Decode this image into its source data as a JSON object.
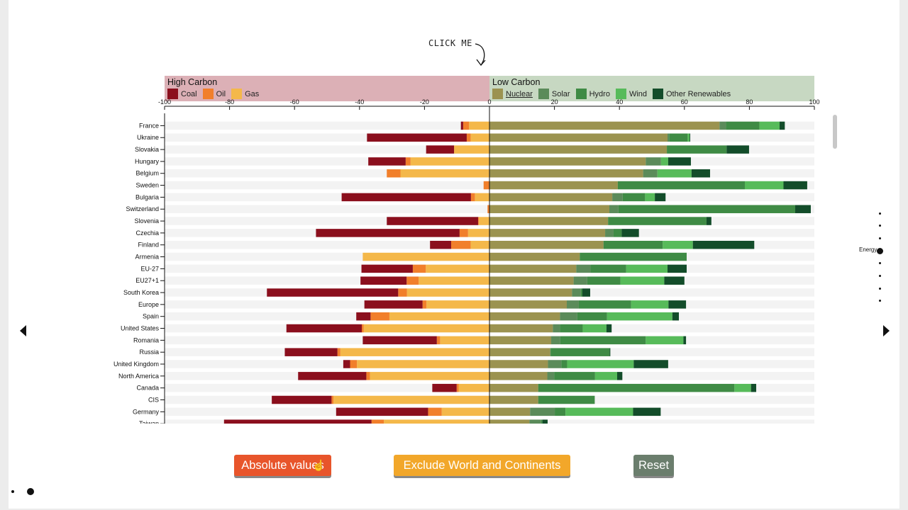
{
  "annotation": {
    "click_me": "CLICK ME"
  },
  "legend": {
    "high_title": "High Carbon",
    "low_title": "Low Carbon",
    "high_items": [
      {
        "label": "Coal",
        "color": "#8b0f1d"
      },
      {
        "label": "Oil",
        "color": "#f17f2b"
      },
      {
        "label": "Gas",
        "color": "#f4b84a"
      }
    ],
    "low_items": [
      {
        "label": "Nuclear",
        "color": "#9b9350"
      },
      {
        "label": "Solar",
        "color": "#5b8b5a"
      },
      {
        "label": "Hydro",
        "color": "#3f8b45"
      },
      {
        "label": "Wind",
        "color": "#57bb5a"
      },
      {
        "label": "Other Renewables",
        "color": "#134d2a"
      }
    ]
  },
  "nav": {
    "active_label": "Energy"
  },
  "buttons": {
    "absolute": "Absolute values",
    "exclude": "Exclude World and Continents",
    "reset": "Reset"
  },
  "chart_data": {
    "type": "bar",
    "orientation": "horizontal-diverging",
    "xlim": [
      -100,
      100
    ],
    "xticks": [
      "-100",
      "-80",
      "-60",
      "-40",
      "-20",
      "0",
      "20",
      "40",
      "60",
      "80",
      "100"
    ],
    "high_series": [
      "Coal",
      "Oil",
      "Gas"
    ],
    "low_series": [
      "Nuclear",
      "Solar",
      "Hydro",
      "Wind",
      "Other Renewables"
    ],
    "colors": {
      "Coal": "#8b0f1d",
      "Oil": "#f17f2b",
      "Gas": "#f4b84a",
      "Nuclear": "#9b9350",
      "Solar": "#5b8b5a",
      "Hydro": "#3f8b45",
      "Wind": "#57bb5a",
      "Other Renewables": "#134d2a"
    },
    "rows": [
      {
        "country": "France",
        "coal": 0.7,
        "oil": 1.8,
        "gas": 6.3,
        "nuclear": 70.8,
        "solar": 2.0,
        "hydro": 10.3,
        "wind": 6.2,
        "other": 1.6
      },
      {
        "country": "Ukraine",
        "coal": 30.7,
        "oil": 1.2,
        "gas": 5.8,
        "nuclear": 54.8,
        "solar": 0.5,
        "hydro": 5.7,
        "wind": 0.6,
        "other": 0.2
      },
      {
        "country": "Slovakia",
        "coal": 8.6,
        "oil": 0.0,
        "gas": 10.9,
        "nuclear": 54.6,
        "solar": 0.0,
        "hydro": 18.4,
        "wind": 0.0,
        "other": 6.9
      },
      {
        "country": "Hungary",
        "coal": 11.5,
        "oil": 1.5,
        "gas": 24.3,
        "nuclear": 48.1,
        "solar": 4.7,
        "hydro": 0.0,
        "wind": 2.2,
        "other": 7.0
      },
      {
        "country": "Belgium",
        "coal": 0.0,
        "oil": 4.2,
        "gas": 27.4,
        "nuclear": 47.3,
        "solar": 4.4,
        "hydro": 0.0,
        "wind": 10.5,
        "other": 5.7
      },
      {
        "country": "Sweden",
        "coal": 0.0,
        "oil": 1.8,
        "gas": 0.0,
        "nuclear": 39.5,
        "solar": 0.0,
        "hydro": 39.1,
        "wind": 11.9,
        "other": 7.3
      },
      {
        "country": "Bulgaria",
        "coal": 39.8,
        "oil": 1.2,
        "gas": 4.5,
        "nuclear": 37.8,
        "solar": 3.2,
        "hydro": 6.9,
        "wind": 3.0,
        "other": 3.3
      },
      {
        "country": "Switzerland",
        "coal": 0.0,
        "oil": 0.6,
        "gas": 0.0,
        "nuclear": 36.9,
        "solar": 2.8,
        "hydro": 54.4,
        "wind": 0.0,
        "other": 4.8
      },
      {
        "country": "Slovenia",
        "coal": 28.1,
        "oil": 0.2,
        "gas": 3.3,
        "nuclear": 36.5,
        "solar": 0.0,
        "hydro": 30.3,
        "wind": 0.0,
        "other": 1.5
      },
      {
        "country": "Czechia",
        "coal": 44.2,
        "oil": 2.6,
        "gas": 6.6,
        "nuclear": 35.6,
        "solar": 2.6,
        "hydro": 2.5,
        "wind": 0.0,
        "other": 5.3
      },
      {
        "country": "Finland",
        "coal": 6.5,
        "oil": 6.0,
        "gas": 5.8,
        "nuclear": 35.1,
        "solar": 0.0,
        "hydro": 18.2,
        "wind": 9.3,
        "other": 18.9
      },
      {
        "country": "Armenia",
        "coal": 0.0,
        "oil": 0.0,
        "gas": 39.0,
        "nuclear": 27.8,
        "solar": 0.0,
        "hydro": 32.9,
        "wind": 0.0,
        "other": 0.0
      },
      {
        "country": "EU-27",
        "coal": 15.8,
        "oil": 4.0,
        "gas": 19.6,
        "nuclear": 26.7,
        "solar": 4.4,
        "hydro": 11.0,
        "wind": 12.7,
        "other": 5.9
      },
      {
        "country": "EU27+1",
        "coal": 14.2,
        "oil": 3.7,
        "gas": 21.8,
        "nuclear": 25.9,
        "solar": 4.2,
        "hydro": 10.2,
        "wind": 13.5,
        "other": 6.2
      },
      {
        "country": "South Korea",
        "coal": 40.4,
        "oil": 2.7,
        "gas": 25.4,
        "nuclear": 25.4,
        "solar": 2.7,
        "hydro": 0.5,
        "wind": 0.0,
        "other": 2.4
      },
      {
        "country": "Europe",
        "coal": 17.9,
        "oil": 1.2,
        "gas": 19.4,
        "nuclear": 23.8,
        "solar": 3.7,
        "hydro": 16.1,
        "wind": 11.5,
        "other": 5.4
      },
      {
        "country": "Spain",
        "coal": 4.4,
        "oil": 5.8,
        "gas": 30.8,
        "nuclear": 21.7,
        "solar": 5.3,
        "hydro": 9.2,
        "wind": 20.1,
        "other": 2.0
      },
      {
        "country": "United States",
        "coal": 23.2,
        "oil": 0.6,
        "gas": 38.7,
        "nuclear": 19.5,
        "solar": 2.2,
        "hydro": 7.0,
        "wind": 7.3,
        "other": 1.6
      },
      {
        "country": "Romania",
        "coal": 22.8,
        "oil": 1.0,
        "gas": 15.2,
        "nuclear": 19.0,
        "solar": 2.8,
        "hydro": 26.3,
        "wind": 11.6,
        "other": 0.8
      },
      {
        "country": "Russia",
        "coal": 16.2,
        "oil": 0.9,
        "gas": 45.9,
        "nuclear": 18.7,
        "solar": 0.1,
        "hydro": 18.2,
        "wind": 0.0,
        "other": 0.2
      },
      {
        "country": "United Kingdom",
        "coal": 2.1,
        "oil": 2.1,
        "gas": 40.8,
        "nuclear": 18.0,
        "solar": 4.1,
        "hydro": 1.8,
        "wind": 20.5,
        "other": 10.6
      },
      {
        "country": "North America",
        "coal": 21.0,
        "oil": 1.1,
        "gas": 36.8,
        "nuclear": 17.8,
        "solar": 2.1,
        "hydro": 12.6,
        "wind": 6.8,
        "other": 1.6
      },
      {
        "country": "Canada",
        "coal": 7.5,
        "oil": 0.6,
        "gas": 9.5,
        "nuclear": 15.0,
        "solar": 0.0,
        "hydro": 60.4,
        "wind": 5.1,
        "other": 1.6
      },
      {
        "country": "CIS",
        "coal": 18.4,
        "oil": 0.6,
        "gas": 48.0,
        "nuclear": 15.0,
        "solar": 0.0,
        "hydro": 17.4,
        "wind": 0.0,
        "other": 0.0
      },
      {
        "country": "Germany",
        "coal": 28.3,
        "oil": 4.2,
        "gas": 14.7,
        "nuclear": 12.5,
        "solar": 7.6,
        "hydro": 3.3,
        "wind": 20.8,
        "other": 8.5
      },
      {
        "country": "Taiwan",
        "coal": 45.4,
        "oil": 3.8,
        "gas": 32.5,
        "nuclear": 12.3,
        "solar": 3.6,
        "hydro": 0.4,
        "wind": 0.0,
        "other": 1.6
      }
    ]
  }
}
